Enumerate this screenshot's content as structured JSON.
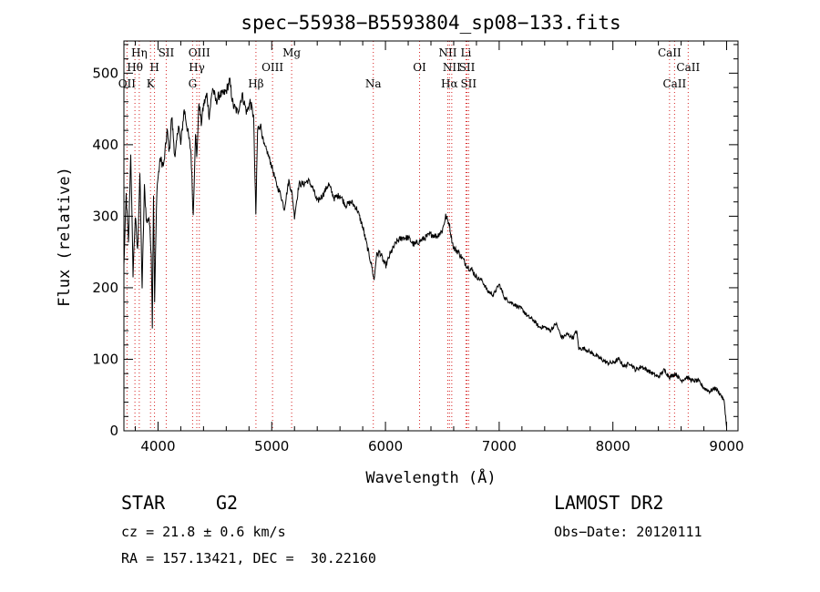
{
  "chart_data": {
    "type": "line",
    "title": "spec−55938−B5593804_sp08−133.fits",
    "xlabel": "Wavelength (Å)",
    "ylabel": "Flux (relative)",
    "xlim": [
      3700,
      9100
    ],
    "ylim": [
      0,
      545
    ],
    "xticks": [
      4000,
      5000,
      6000,
      7000,
      8000,
      9000
    ],
    "xtick_labels": [
      "4000",
      "5000",
      "6000",
      "7000",
      "8000",
      "9000"
    ],
    "yticks": [
      0,
      100,
      200,
      300,
      400,
      500
    ],
    "ytick_labels": [
      "0",
      "100",
      "200",
      "300",
      "400",
      "500"
    ],
    "grid": false,
    "line_color": "#000000",
    "marker_color": "#d62020",
    "series": [
      {
        "name": "spectrum",
        "x": [
          3700,
          3720,
          3740,
          3760,
          3780,
          3800,
          3820,
          3840,
          3860,
          3880,
          3900,
          3920,
          3940,
          3950,
          3960,
          3970,
          3990,
          4020,
          4050,
          4080,
          4100,
          4120,
          4150,
          4180,
          4200,
          4230,
          4260,
          4290,
          4310,
          4330,
          4340,
          4360,
          4380,
          4400,
          4430,
          4450,
          4480,
          4510,
          4540,
          4570,
          4600,
          4630,
          4660,
          4700,
          4740,
          4780,
          4810,
          4840,
          4860,
          4875,
          4900,
          4930,
          4960,
          5000,
          5040,
          5080,
          5110,
          5150,
          5180,
          5200,
          5240,
          5280,
          5320,
          5360,
          5400,
          5450,
          5500,
          5550,
          5600,
          5650,
          5700,
          5750,
          5800,
          5850,
          5880,
          5900,
          5920,
          5950,
          6000,
          6050,
          6100,
          6150,
          6200,
          6250,
          6300,
          6350,
          6400,
          6450,
          6500,
          6530,
          6560,
          6580,
          6600,
          6640,
          6680,
          6720,
          6760,
          6800,
          6850,
          6900,
          6950,
          7000,
          7050,
          7100,
          7150,
          7200,
          7250,
          7300,
          7350,
          7400,
          7450,
          7500,
          7550,
          7600,
          7650,
          7680,
          7700,
          7750,
          7800,
          7850,
          7900,
          7950,
          8000,
          8050,
          8100,
          8150,
          8200,
          8250,
          8300,
          8350,
          8400,
          8450,
          8500,
          8550,
          8600,
          8650,
          8700,
          8750,
          8800,
          8850,
          8900,
          8950,
          8980,
          9000
        ],
        "y": [
          230,
          330,
          260,
          390,
          220,
          300,
          250,
          360,
          200,
          340,
          290,
          300,
          250,
          150,
          330,
          180,
          340,
          380,
          370,
          420,
          390,
          440,
          380,
          430,
          400,
          450,
          420,
          390,
          300,
          420,
          380,
          460,
          430,
          455,
          470,
          440,
          480,
          460,
          470,
          470,
          475,
          490,
          455,
          445,
          470,
          445,
          460,
          440,
          300,
          420,
          430,
          400,
          390,
          370,
          345,
          330,
          310,
          350,
          330,
          300,
          345,
          345,
          350,
          340,
          320,
          330,
          345,
          325,
          330,
          315,
          320,
          310,
          285,
          250,
          230,
          210,
          245,
          250,
          230,
          250,
          265,
          270,
          270,
          260,
          265,
          270,
          275,
          272,
          280,
          300,
          290,
          270,
          255,
          250,
          240,
          230,
          225,
          215,
          210,
          195,
          190,
          205,
          185,
          180,
          175,
          170,
          160,
          155,
          145,
          145,
          140,
          150,
          130,
          135,
          130,
          140,
          115,
          115,
          110,
          105,
          100,
          95,
          95,
          100,
          90,
          95,
          85,
          90,
          85,
          80,
          75,
          85,
          75,
          80,
          70,
          75,
          70,
          70,
          60,
          55,
          60,
          50,
          40,
          5
        ]
      }
    ],
    "lines": [
      {
        "label": "OII",
        "wave": 3727,
        "row": 3
      },
      {
        "label": "Hθ",
        "wave": 3797,
        "row": 2
      },
      {
        "label": "Hη",
        "wave": 3835,
        "row": 1
      },
      {
        "label": "K",
        "wave": 3934,
        "row": 3
      },
      {
        "label": "H",
        "wave": 3969,
        "row": 2
      },
      {
        "label": "SII",
        "wave": 4072,
        "row": 1
      },
      {
        "label": "G",
        "wave": 4304,
        "row": 3
      },
      {
        "label": "Hγ",
        "wave": 4341,
        "row": 2
      },
      {
        "label": "OIII",
        "wave": 4363,
        "row": 1
      },
      {
        "label": "Hβ",
        "wave": 4861,
        "row": 3
      },
      {
        "label": "OIII",
        "wave": 5007,
        "row": 2
      },
      {
        "label": "Mg",
        "wave": 5175,
        "row": 1
      },
      {
        "label": "Na",
        "wave": 5893,
        "row": 3
      },
      {
        "label": "OI",
        "wave": 6300,
        "row": 2
      },
      {
        "label": "NII",
        "wave": 6548,
        "row": 1
      },
      {
        "label": "Hα",
        "wave": 6563,
        "row": 3
      },
      {
        "label": "NII",
        "wave": 6583,
        "row": 2
      },
      {
        "label": "Li",
        "wave": 6708,
        "row": 1
      },
      {
        "label": "SII",
        "wave": 6717,
        "row": 2
      },
      {
        "label": "SII",
        "wave": 6731,
        "row": 3
      },
      {
        "label": "CaII",
        "wave": 8498,
        "row": 1
      },
      {
        "label": "CaII",
        "wave": 8542,
        "row": 3
      },
      {
        "label": "CaII",
        "wave": 8662,
        "row": 2
      }
    ]
  },
  "info": {
    "object_class": "STAR",
    "subclass": "G2",
    "survey": "LAMOST DR2",
    "cz": "cz = 21.8 ± 0.6 km/s",
    "obs_date": "Obs−Date: 20120111",
    "radec": "RA = 157.13421, DEC =  30.22160"
  }
}
